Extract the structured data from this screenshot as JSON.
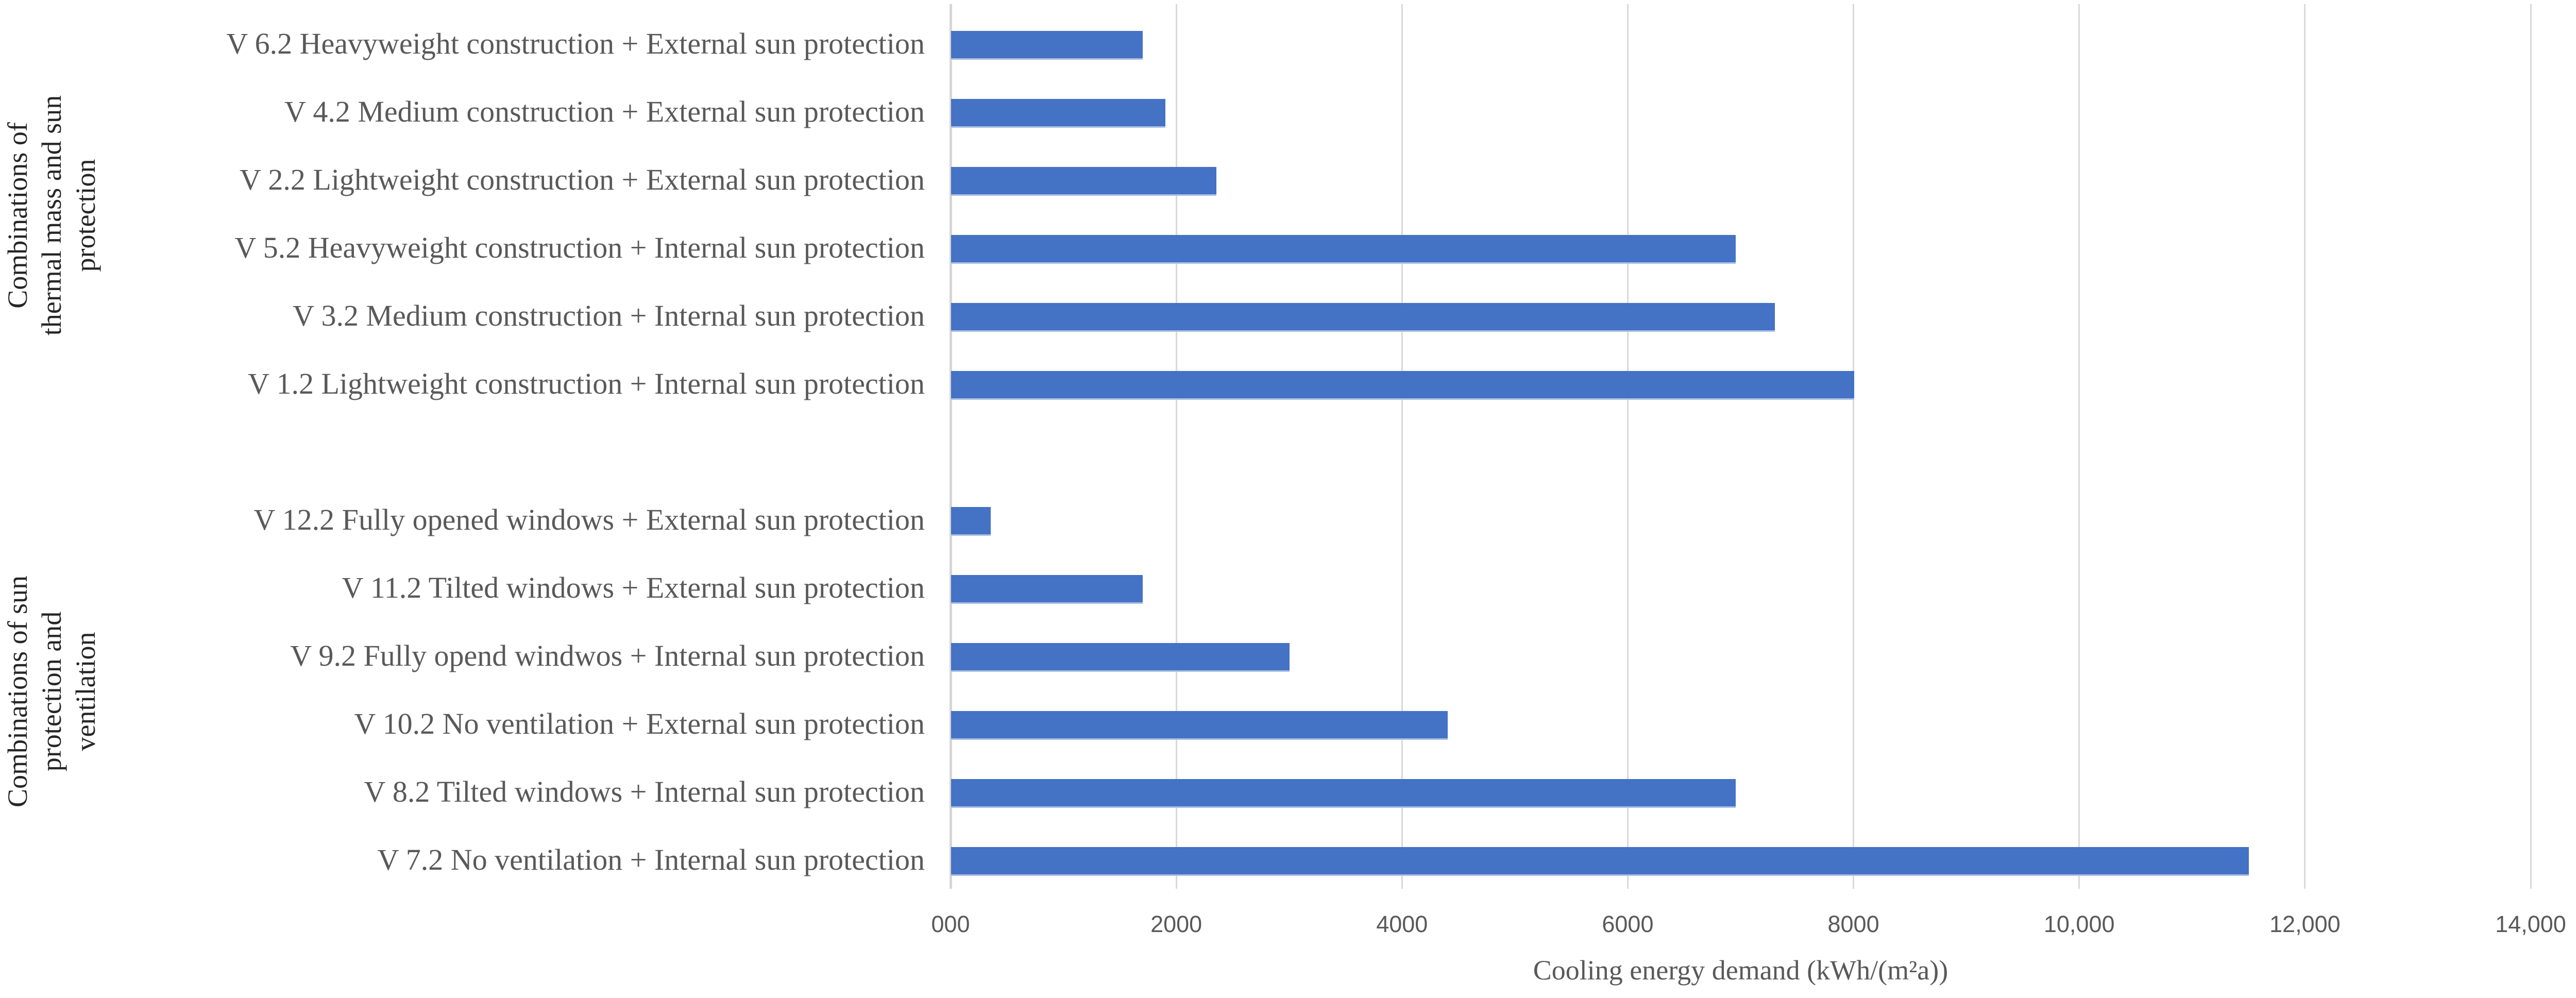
{
  "chart_data": {
    "type": "bar",
    "orientation": "horizontal",
    "xlabel": "Cooling energy demand (kWh/(m²a))",
    "xlim": [
      0,
      14000
    ],
    "grid": true,
    "bar_color": "#4472C4",
    "gridline_color": "#D9D9D9",
    "text_color": "#595959",
    "x_ticks": [
      {
        "label": "000",
        "value": 0
      },
      {
        "label": "2000",
        "value": 2000
      },
      {
        "label": "4000",
        "value": 4000
      },
      {
        "label": "6000",
        "value": 6000
      },
      {
        "label": "8000",
        "value": 8000
      },
      {
        "label": "10,000",
        "value": 10000
      },
      {
        "label": "12,000",
        "value": 12000
      },
      {
        "label": "14,000",
        "value": 14000
      }
    ],
    "groups": [
      {
        "label": "Combinations of\nthermal mass and sun\nprotection",
        "bars": [
          {
            "category": "V 6.2 Heavyweight construction + External sun protection",
            "value": 1700
          },
          {
            "category": "V 4.2 Medium construction + External sun protection",
            "value": 1900
          },
          {
            "category": "V 2.2 Lightweight construction + External sun protection",
            "value": 2350
          },
          {
            "category": "V 5.2 Heavyweight construction + Internal sun protection",
            "value": 6950
          },
          {
            "category": "V 3.2 Medium construction + Internal sun protection",
            "value": 7300
          },
          {
            "category": "V 1.2 Lightweight construction + Internal sun protection",
            "value": 8000
          }
        ]
      },
      {
        "label": "Combinations of sun\nprotection and\nventilation",
        "bars": [
          {
            "category": "V 12.2 Fully opened windows + External sun protection",
            "value": 350
          },
          {
            "category": "V 11.2 Tilted windows + External sun protection",
            "value": 1700
          },
          {
            "category": "V 9.2 Fully opend windwos + Internal sun protection",
            "value": 3000
          },
          {
            "category": "V 10.2 No ventilation + External sun protection",
            "value": 4400
          },
          {
            "category": "V 8.2 Tilted windows + Internal sun protection",
            "value": 6950
          },
          {
            "category": "V 7.2 No ventilation + Internal sun protection",
            "value": 11500
          }
        ]
      }
    ]
  }
}
